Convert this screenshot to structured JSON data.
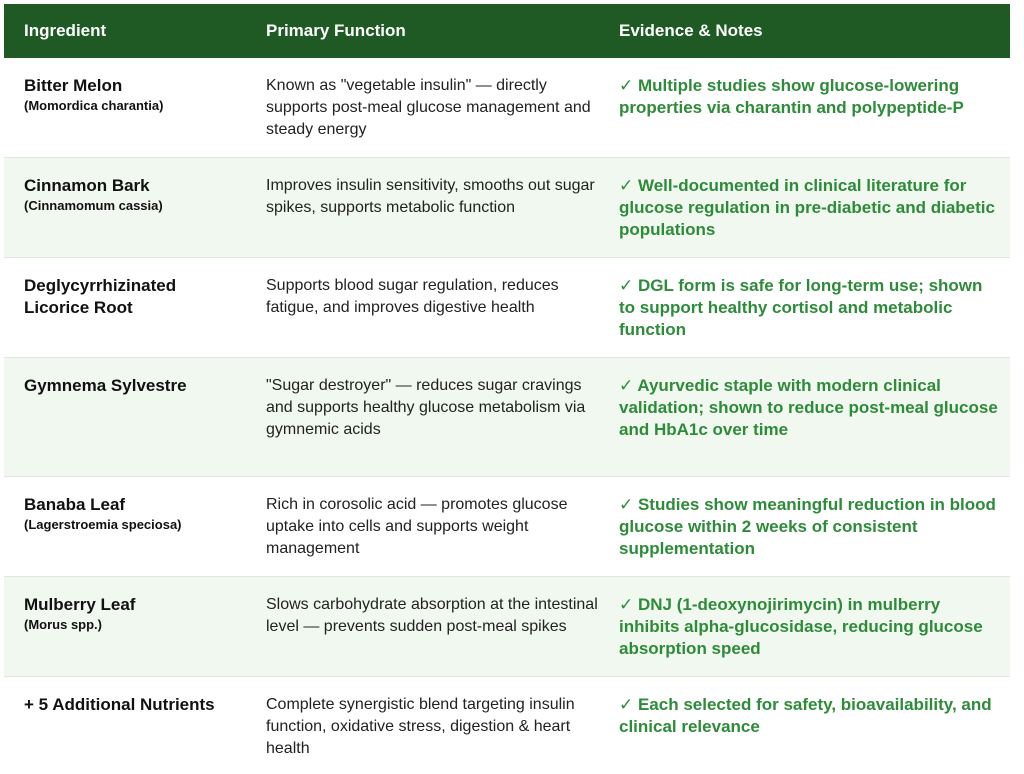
{
  "header": {
    "ingredient": "Ingredient",
    "function": "Primary Function",
    "evidence": "Evidence & Notes"
  },
  "rows": [
    {
      "name": "Bitter Melon",
      "latin": "(Momordica charantia)",
      "function": "Known as \"vegetable insulin\" — directly supports post-meal glucose management and steady energy",
      "evidence": "✓ Multiple studies show glucose-lowering properties via charantin and polypeptide-P"
    },
    {
      "name": "Cinnamon Bark",
      "latin": "(Cinnamomum cassia)",
      "function": "Improves insulin sensitivity, smooths out sugar spikes, supports metabolic function",
      "evidence": "✓ Well-documented in clinical literature for glucose regulation in pre-diabetic and diabetic populations"
    },
    {
      "name": "Deglycyrrhizinated Licorice Root",
      "latin": "",
      "function": "Supports blood sugar regulation, reduces fatigue, and improves digestive health",
      "evidence": "✓ DGL form is safe for long-term use; shown to support healthy cortisol and metabolic function"
    },
    {
      "name": "Gymnema Sylvestre",
      "latin": "",
      "function": "\"Sugar destroyer\" — reduces sugar cravings and supports healthy glucose metabolism via gymnemic acids",
      "evidence": "✓ Ayurvedic staple with modern clinical validation; shown to reduce post-meal glucose and HbA1c over time"
    },
    {
      "name": "Banaba Leaf",
      "latin": "(Lagerstroemia speciosa)",
      "function": "Rich in corosolic acid — promotes glucose uptake into cells and supports weight management",
      "evidence": "✓ Studies show meaningful reduction in blood glucose within 2 weeks of consistent supplementation"
    },
    {
      "name": "Mulberry Leaf",
      "latin": "(Morus spp.)",
      "function": "Slows carbohydrate absorption at the intestinal level — prevents sudden post-meal spikes",
      "evidence": "✓ DNJ (1-deoxynojirimycin) in mulberry inhibits alpha-glucosidase, reducing glucose absorption speed"
    },
    {
      "name": "+ 5 Additional Nutrients",
      "latin": "",
      "function": "Complete synergistic blend targeting insulin function, oxidative stress, digestion & heart health",
      "evidence": "✓ Each selected for safety, bioavailability, and clinical relevance"
    }
  ],
  "colors": {
    "header_bg": "#1f5a24",
    "alt_row_bg": "#f1f8ef",
    "evidence_text": "#2e8b3a"
  }
}
